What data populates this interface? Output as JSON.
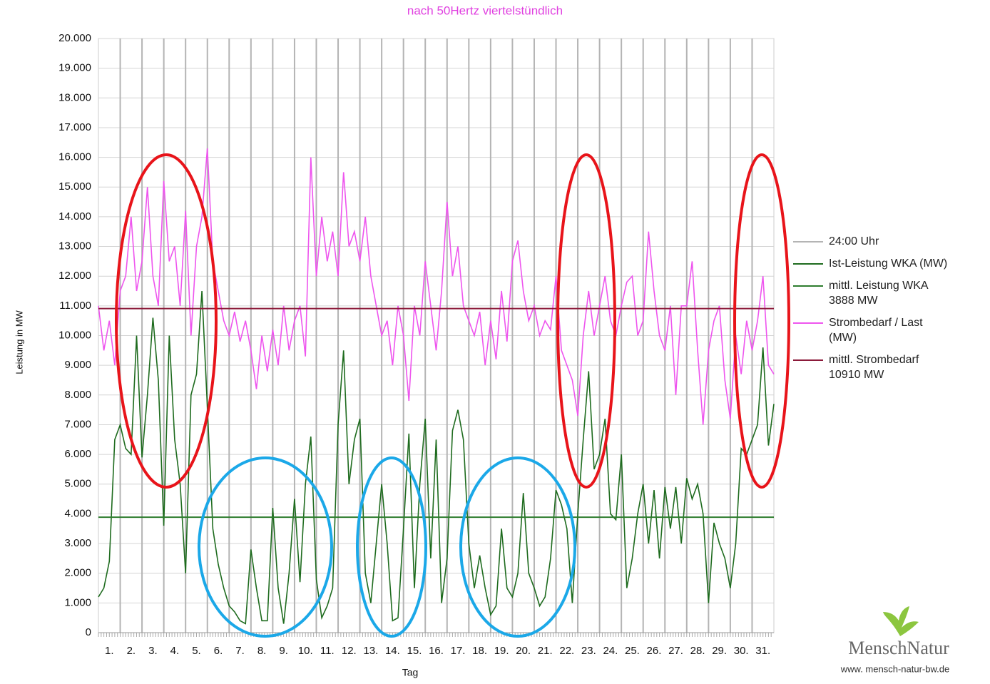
{
  "chart_data": {
    "type": "line",
    "title": "nach 50Hertz viertelstündlich",
    "y_label": "Leistung in MW",
    "x_label": "Tag",
    "categories": [
      "1.",
      "2.",
      "3.",
      "4.",
      "5.",
      "6.",
      "7.",
      "8.",
      "9.",
      "10.",
      "11.",
      "12.",
      "13.",
      "14.",
      "15.",
      "16.",
      "17.",
      "18.",
      "19.",
      "20.",
      "21.",
      "22.",
      "23.",
      "24.",
      "25.",
      "26.",
      "27.",
      "28.",
      "29.",
      "30.",
      "31."
    ],
    "x": [
      0,
      0.25,
      0.5,
      0.75,
      1,
      1.25,
      1.5,
      1.75,
      2,
      2.25,
      2.5,
      2.75,
      3,
      3.25,
      3.5,
      3.75,
      4,
      4.25,
      4.5,
      4.75,
      5,
      5.25,
      5.5,
      5.75,
      6,
      6.25,
      6.5,
      6.75,
      7,
      7.25,
      7.5,
      7.75,
      8,
      8.25,
      8.5,
      8.75,
      9,
      9.25,
      9.5,
      9.75,
      10,
      10.25,
      10.5,
      10.75,
      11,
      11.25,
      11.5,
      11.75,
      12,
      12.25,
      12.5,
      12.75,
      13,
      13.25,
      13.5,
      13.75,
      14,
      14.25,
      14.5,
      14.75,
      15,
      15.25,
      15.5,
      15.75,
      16,
      16.25,
      16.5,
      16.75,
      17,
      17.25,
      17.5,
      17.75,
      18,
      18.25,
      18.5,
      18.75,
      19,
      19.25,
      19.5,
      19.75,
      20,
      20.25,
      20.5,
      20.75,
      21,
      21.25,
      21.5,
      21.75,
      22,
      22.25,
      22.5,
      22.75,
      23,
      23.25,
      23.5,
      23.75,
      24,
      24.25,
      24.5,
      24.75,
      25,
      25.25,
      25.5,
      25.75,
      26,
      26.25,
      26.5,
      26.75,
      27,
      27.25,
      27.5,
      27.75,
      28,
      28.25,
      28.5,
      28.75,
      29,
      29.25,
      29.5,
      29.75,
      30,
      30.25,
      30.5,
      30.75,
      31
    ],
    "xlim": [
      0,
      31
    ],
    "ylim": [
      0,
      20000
    ],
    "yticks": [
      0,
      {
        "value": 1000,
        "label": "1.000"
      },
      {
        "value": 2000,
        "label": "2.000"
      },
      {
        "value": 3000,
        "label": "3.000"
      },
      {
        "value": 4000,
        "label": "4.000"
      },
      {
        "value": 5000,
        "label": "5.000"
      },
      {
        "value": 6000,
        "label": "6.000"
      },
      {
        "value": 7000,
        "label": "7.000"
      },
      {
        "value": 8000,
        "label": "8.000"
      },
      {
        "value": 9000,
        "label": "9.000"
      },
      {
        "value": 10000,
        "label": "10.000"
      },
      {
        "value": 11000,
        "label": "11.000"
      },
      {
        "value": 12000,
        "label": "12.000"
      },
      {
        "value": 13000,
        "label": "13.000"
      },
      {
        "value": 14000,
        "label": "14.000"
      },
      {
        "value": 15000,
        "label": "15.000"
      },
      {
        "value": 16000,
        "label": "16.000"
      },
      {
        "value": 17000,
        "label": "17.000"
      },
      {
        "value": 18000,
        "label": "18.000"
      },
      {
        "value": 19000,
        "label": "19.000"
      },
      {
        "value": 20000,
        "label": "20.000"
      }
    ],
    "grid": true,
    "legend": "right",
    "series": [
      {
        "name": "24:00 Uhr",
        "color": "#b4b4b4"
      },
      {
        "name": "Ist-Leistung WKA (MW)",
        "color": "#1e6b1e",
        "values": [
          1200,
          1500,
          2400,
          6500,
          7000,
          6200,
          6000,
          10000,
          5900,
          8000,
          10600,
          8500,
          3600,
          10000,
          6500,
          5000,
          2000,
          8000,
          8700,
          11500,
          7600,
          3500,
          2300,
          1500,
          900,
          700,
          400,
          300,
          2800,
          1500,
          400,
          400,
          4200,
          1500,
          300,
          2000,
          4500,
          1700,
          5000,
          6600,
          1800,
          500,
          900,
          1500,
          7000,
          9500,
          5000,
          6500,
          7200,
          2000,
          1000,
          3000,
          5000,
          3000,
          400,
          500,
          3500,
          6700,
          1500,
          5000,
          7200,
          2500,
          6500,
          1000,
          2500,
          6800,
          7500,
          6500,
          3000,
          1500,
          2600,
          1500,
          600,
          900,
          3500,
          1500,
          1200,
          2000,
          4700,
          2000,
          1500,
          900,
          1200,
          2500,
          4800,
          4300,
          3500,
          1000,
          4000,
          6500,
          8800,
          5500,
          6000,
          7200,
          4000,
          3800,
          6000,
          1500,
          2500,
          4000,
          5000,
          3000,
          4800,
          2500,
          4900,
          3500,
          4900,
          3000,
          5200,
          4500,
          5000,
          4000,
          1000,
          3700,
          3000,
          2500,
          1500,
          3000,
          6200,
          6000,
          6500,
          7000,
          9600,
          6300,
          7700
        ]
      },
      {
        "name": "mittl. Leistung WKA\n3888 MW",
        "color": "#2e7d2e",
        "value": 3888
      },
      {
        "name": "Strombedarf / Last\n(MW)",
        "color": "#ee55ee",
        "values": [
          11000,
          9500,
          10500,
          9000,
          11500,
          12000,
          14000,
          11500,
          12500,
          15000,
          12000,
          11000,
          15200,
          12500,
          13000,
          11000,
          14200,
          10000,
          13000,
          14000,
          16300,
          12500,
          11500,
          10500,
          10000,
          10800,
          9800,
          10500,
          9500,
          8200,
          10000,
          8800,
          10200,
          9000,
          11000,
          9500,
          10500,
          11000,
          9300,
          16000,
          12000,
          14000,
          12500,
          13500,
          12000,
          15500,
          13000,
          13500,
          12500,
          14000,
          12000,
          11000,
          10000,
          10500,
          9000,
          11000,
          10000,
          7800,
          11000,
          10000,
          12500,
          11000,
          9500,
          11500,
          14500,
          12000,
          13000,
          11000,
          10500,
          10000,
          10800,
          9000,
          10500,
          9200,
          11500,
          9800,
          12500,
          13200,
          11500,
          10500,
          11000,
          10000,
          10500,
          10200,
          12000,
          9500,
          9000,
          8500,
          7300,
          10000,
          11500,
          10000,
          11000,
          12000,
          10500,
          10000,
          11000,
          11800,
          12000,
          10000,
          10500,
          13500,
          11500,
          10000,
          9500,
          11000,
          8000,
          11000,
          11000,
          12500,
          9500,
          7000,
          9500,
          10500,
          11000,
          8500,
          7200,
          10000,
          8700,
          10500,
          9500,
          10500,
          12000,
          9000,
          8700
        ]
      },
      {
        "name": "mittl. Strombedarf\n10910 MW",
        "color": "#8b1a3a",
        "value": 10910
      }
    ],
    "logo_text": "MenschNatur",
    "logo_url": "www. mensch-natur-bw.de"
  }
}
